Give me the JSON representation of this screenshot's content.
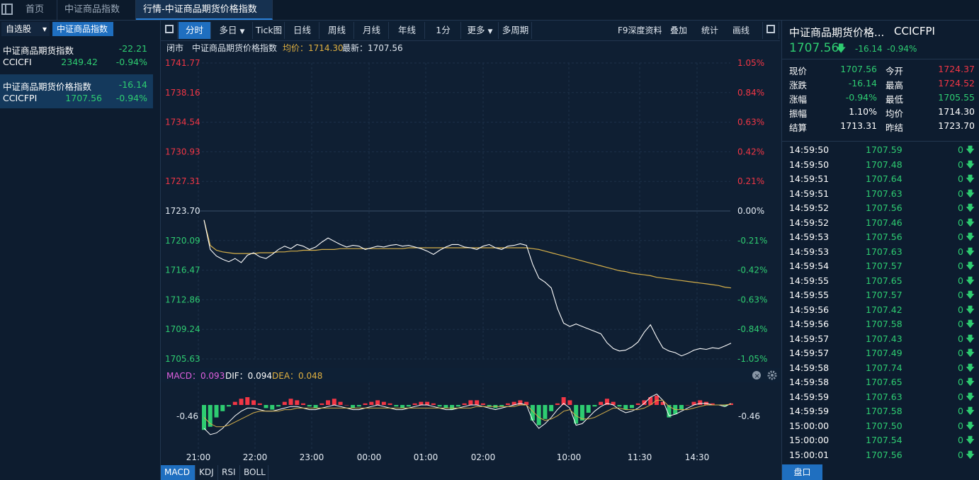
{
  "tabs": [
    {
      "label": "首页"
    },
    {
      "label": "中证商品指数"
    },
    {
      "label": "行情-中证商品期货价格指数",
      "close": "×"
    }
  ],
  "left": {
    "watchlist_label": "自选股",
    "dropdown": "▾",
    "group_label": "中证商品指数",
    "items": [
      {
        "name": "中证商品期货指数",
        "code": "CCICFI",
        "price": "2349.42",
        "change": "-22.21",
        "pct": "-0.94%"
      },
      {
        "name": "中证商品期货价格指数",
        "code": "CCICFPI",
        "price": "1707.56",
        "change": "-16.14",
        "pct": "-0.94%"
      }
    ]
  },
  "toolbar": {
    "periods": [
      "分时",
      "多日",
      "Tick图",
      "日线",
      "周线",
      "月线",
      "年线",
      "1分",
      "更多",
      "多周期"
    ],
    "right": [
      "F9深度资料",
      "叠加",
      "统计",
      "画线"
    ]
  },
  "infobar": {
    "status": "闭市",
    "name": "中证商品期货价格指数",
    "avg_label": "均价：1714.30",
    "last_label": "最新：1707.56"
  },
  "chart_data": {
    "type": "line",
    "title": "",
    "prev_close": 1723.7,
    "ylim": [
      1705.63,
      1741.77
    ],
    "price_ticks": [
      "1741.77",
      "1738.16",
      "1734.54",
      "1730.93",
      "1727.31",
      "1723.70",
      "1720.09",
      "1716.47",
      "1712.86",
      "1709.24",
      "1705.63"
    ],
    "pct_ticks": [
      "1.05%",
      "0.84%",
      "0.63%",
      "0.42%",
      "0.21%",
      "0.00%",
      "-0.21%",
      "-0.42%",
      "-0.63%",
      "-0.84%",
      "-1.05%"
    ],
    "x_ticks": [
      "21:00",
      "22:00",
      "23:00",
      "00:00",
      "01:00",
      "02:00",
      "10:00",
      "11:30",
      "14:30"
    ],
    "series": [
      {
        "name": "",
        "values": [
          1722.6,
          1719.0,
          1718.2,
          1717.8,
          1717.5,
          1717.9,
          1717.4,
          1718.3,
          1718.6,
          1718.1,
          1717.9,
          1718.4,
          1719.0,
          1719.4,
          1719.1,
          1719.6,
          1719.4,
          1719.0,
          1719.3,
          1719.9,
          1720.4,
          1720.0,
          1719.6,
          1719.3,
          1719.5,
          1719.4,
          1719.0,
          1719.2,
          1719.4,
          1719.3,
          1719.5,
          1719.6,
          1719.4,
          1719.5,
          1719.3,
          1719.1,
          1718.8,
          1718.4,
          1718.9,
          1719.3,
          1719.6,
          1719.6,
          1719.3,
          1719.2,
          1719.0,
          1719.4,
          1719.6,
          1719.2,
          1719.0,
          1719.4,
          1719.5,
          1719.7,
          1719.5,
          1717.2,
          1715.5,
          1715.0,
          1714.3,
          1711.8,
          1710.0,
          1709.6,
          1709.9,
          1709.6,
          1709.3,
          1709.0,
          1708.7,
          1707.6,
          1706.9,
          1706.6,
          1706.7,
          1707.1,
          1707.7,
          1708.9,
          1709.8,
          1708.3,
          1707.0,
          1706.6,
          1706.4,
          1706.0,
          1706.3,
          1706.7,
          1706.9,
          1706.8,
          1707.0,
          1706.9,
          1707.2,
          1707.56
        ]
      },
      {
        "name": "",
        "values": [
          1722.6,
          1719.5,
          1718.9,
          1718.7,
          1718.6,
          1718.5,
          1718.5,
          1718.5,
          1718.5,
          1718.6,
          1718.6,
          1718.6,
          1718.7,
          1718.7,
          1718.8,
          1718.8,
          1718.9,
          1718.9,
          1718.9,
          1719.0,
          1719.0,
          1719.0,
          1719.1,
          1719.1,
          1719.1,
          1719.1,
          1719.1,
          1719.1,
          1719.1,
          1719.1,
          1719.1,
          1719.1,
          1719.1,
          1719.2,
          1719.2,
          1719.2,
          1719.2,
          1719.2,
          1719.2,
          1719.2,
          1719.2,
          1719.2,
          1719.2,
          1719.2,
          1719.2,
          1719.2,
          1719.2,
          1719.2,
          1719.2,
          1719.2,
          1719.2,
          1719.2,
          1719.2,
          1719.1,
          1719.0,
          1718.8,
          1718.6,
          1718.4,
          1718.2,
          1718.0,
          1717.8,
          1717.6,
          1717.4,
          1717.2,
          1717.0,
          1716.8,
          1716.6,
          1716.4,
          1716.3,
          1716.1,
          1716.0,
          1715.9,
          1715.8,
          1715.6,
          1715.5,
          1715.4,
          1715.3,
          1715.2,
          1715.1,
          1715.0,
          1714.9,
          1714.8,
          1714.7,
          1714.6,
          1714.4,
          1714.3
        ]
      }
    ]
  },
  "macd": {
    "label": "MACD：0.093",
    "dif_label": "DIF：0.094",
    "dea_label": "DEA：0.048",
    "axis_label": "-0.46",
    "hist": [
      -1.6,
      -1.4,
      -0.8,
      -0.4,
      -0.1,
      0.2,
      0.4,
      0.5,
      0.3,
      0.1,
      -0.2,
      -0.3,
      -0.1,
      0.2,
      0.4,
      0.3,
      0.1,
      -0.1,
      -0.2,
      0.1,
      0.3,
      0.4,
      0.2,
      0.0,
      -0.2,
      -0.1,
      0.1,
      0.2,
      0.3,
      0.2,
      0.1,
      -0.1,
      -0.2,
      -0.1,
      0.1,
      0.2,
      0.2,
      0.1,
      -0.1,
      -0.2,
      -0.3,
      -0.1,
      0.1,
      0.3,
      0.3,
      0.1,
      -0.1,
      -0.2,
      -0.1,
      0.1,
      0.2,
      0.3,
      0.2,
      -1.0,
      -1.3,
      -0.9,
      -0.4,
      0.1,
      0.5,
      0.3,
      -1.2,
      -1.0,
      -0.5,
      -0.1,
      0.2,
      0.4,
      0.2,
      -0.1,
      -0.3,
      -0.2,
      0.1,
      0.3,
      0.5,
      0.6,
      0.2,
      -0.8,
      -0.6,
      -0.3,
      0.0,
      0.2,
      0.3,
      0.2,
      0.1,
      0.0,
      -0.1,
      0.1
    ],
    "dif": [
      -1.5,
      -1.9,
      -1.8,
      -1.5,
      -1.1,
      -0.7,
      -0.4,
      -0.2,
      -0.2,
      -0.3,
      -0.4,
      -0.4,
      -0.3,
      -0.2,
      -0.1,
      -0.1,
      -0.2,
      -0.3,
      -0.3,
      -0.2,
      -0.1,
      0.0,
      -0.1,
      -0.2,
      -0.3,
      -0.3,
      -0.2,
      -0.1,
      0.0,
      -0.1,
      -0.2,
      -0.3,
      -0.3,
      -0.2,
      -0.1,
      0.0,
      0.0,
      -0.1,
      -0.2,
      -0.3,
      -0.3,
      -0.2,
      -0.1,
      0.0,
      0.0,
      -0.1,
      -0.2,
      -0.3,
      -0.2,
      -0.1,
      0.0,
      0.1,
      0.0,
      -1.0,
      -1.5,
      -1.2,
      -0.8,
      -0.3,
      0.1,
      -0.2,
      -1.3,
      -1.2,
      -0.8,
      -0.4,
      -0.1,
      0.1,
      0.0,
      -0.3,
      -0.5,
      -0.4,
      -0.2,
      0.1,
      0.5,
      0.7,
      0.3,
      -0.7,
      -0.6,
      -0.4,
      -0.2,
      0.0,
      0.1,
      0.1,
      0.0,
      0.0,
      -0.1,
      0.094
    ],
    "dea": [
      -0.8,
      -1.2,
      -1.4,
      -1.4,
      -1.3,
      -1.1,
      -0.9,
      -0.7,
      -0.5,
      -0.4,
      -0.4,
      -0.4,
      -0.4,
      -0.3,
      -0.3,
      -0.2,
      -0.2,
      -0.2,
      -0.2,
      -0.2,
      -0.2,
      -0.2,
      -0.2,
      -0.2,
      -0.2,
      -0.2,
      -0.2,
      -0.2,
      -0.2,
      -0.2,
      -0.2,
      -0.2,
      -0.2,
      -0.2,
      -0.2,
      -0.2,
      -0.2,
      -0.2,
      -0.2,
      -0.2,
      -0.2,
      -0.2,
      -0.2,
      -0.2,
      -0.1,
      -0.1,
      -0.1,
      -0.1,
      -0.1,
      -0.1,
      -0.1,
      0.0,
      0.0,
      -0.4,
      -0.8,
      -1.0,
      -0.9,
      -0.7,
      -0.4,
      -0.3,
      -0.7,
      -0.9,
      -0.9,
      -0.8,
      -0.6,
      -0.4,
      -0.2,
      -0.2,
      -0.3,
      -0.3,
      -0.3,
      -0.2,
      0.0,
      0.3,
      0.3,
      -0.1,
      -0.3,
      -0.3,
      -0.3,
      -0.2,
      -0.1,
      0.0,
      0.0,
      0.0,
      0.0,
      0.048
    ]
  },
  "indicator_tabs": [
    "MACD",
    "KDJ",
    "RSI",
    "BOLL"
  ],
  "right": {
    "title": "中证商品期货价格...",
    "code": "CCICFPI",
    "price": "1707.56",
    "arrow": "🡇",
    "change": "-16.14",
    "pct": "-0.94%",
    "quotes": [
      {
        "l": "现价",
        "v": "1707.56",
        "l2": "今开",
        "v2": "1724.37"
      },
      {
        "l": "涨跌",
        "v": "-16.14",
        "l2": "最高",
        "v2": "1724.52"
      },
      {
        "l": "涨幅",
        "v": "-0.94%",
        "l2": "最低",
        "v2": "1705.55"
      },
      {
        "l": "振幅",
        "v": "1.10%",
        "l2": "均价",
        "v2": "1714.30"
      },
      {
        "l": "结算",
        "v": "1713.31",
        "l2": "昨结",
        "v2": "1723.70"
      }
    ],
    "ticks": [
      {
        "t": "14:59:50",
        "p": "1707.59",
        "q": "0"
      },
      {
        "t": "14:59:50",
        "p": "1707.48",
        "q": "0"
      },
      {
        "t": "14:59:51",
        "p": "1707.64",
        "q": "0"
      },
      {
        "t": "14:59:51",
        "p": "1707.63",
        "q": "0"
      },
      {
        "t": "14:59:52",
        "p": "1707.56",
        "q": "0"
      },
      {
        "t": "14:59:52",
        "p": "1707.46",
        "q": "0"
      },
      {
        "t": "14:59:53",
        "p": "1707.56",
        "q": "0"
      },
      {
        "t": "14:59:53",
        "p": "1707.63",
        "q": "0"
      },
      {
        "t": "14:59:54",
        "p": "1707.57",
        "q": "0"
      },
      {
        "t": "14:59:55",
        "p": "1707.65",
        "q": "0"
      },
      {
        "t": "14:59:55",
        "p": "1707.57",
        "q": "0"
      },
      {
        "t": "14:59:56",
        "p": "1707.42",
        "q": "0"
      },
      {
        "t": "14:59:56",
        "p": "1707.58",
        "q": "0"
      },
      {
        "t": "14:59:57",
        "p": "1707.43",
        "q": "0"
      },
      {
        "t": "14:59:57",
        "p": "1707.49",
        "q": "0"
      },
      {
        "t": "14:59:58",
        "p": "1707.74",
        "q": "0"
      },
      {
        "t": "14:59:58",
        "p": "1707.65",
        "q": "0"
      },
      {
        "t": "14:59:59",
        "p": "1707.63",
        "q": "0"
      },
      {
        "t": "14:59:59",
        "p": "1707.58",
        "q": "0"
      },
      {
        "t": "15:00:00",
        "p": "1707.50",
        "q": "0"
      },
      {
        "t": "15:00:00",
        "p": "1707.54",
        "q": "0"
      },
      {
        "t": "15:00:01",
        "p": "1707.56",
        "q": "0"
      }
    ],
    "bottom_tab": "盘口"
  },
  "colors": {
    "up": "#f23645",
    "down": "#2ecc71",
    "price_line": "#ffffff",
    "avg_line": "#d6b04a"
  }
}
